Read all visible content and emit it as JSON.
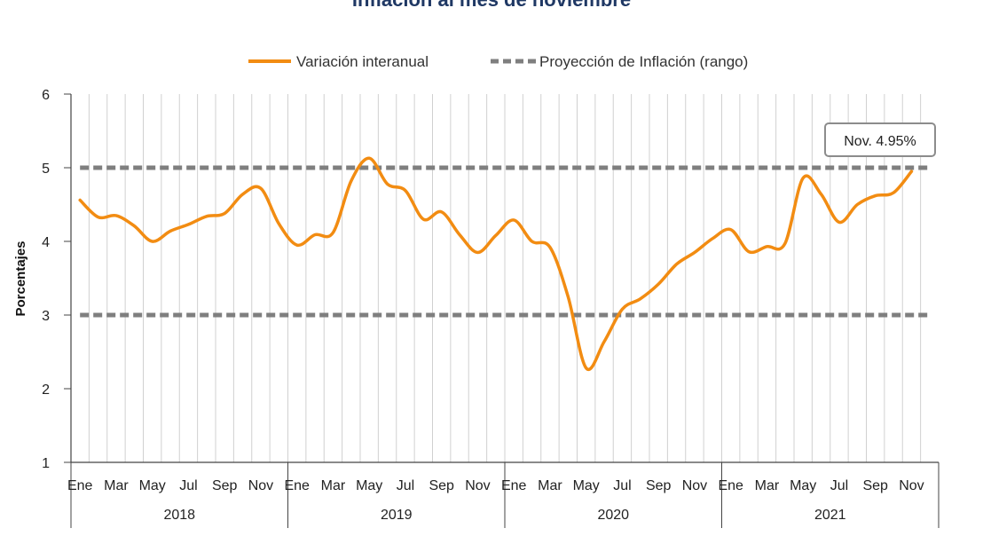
{
  "chart_data": {
    "type": "line",
    "title": "Inflación al mes de noviembre",
    "ylabel": "Porcentajes",
    "ylim": [
      1,
      6
    ],
    "yticks": [
      1,
      2,
      3,
      4,
      5,
      6
    ],
    "grid": "vertical",
    "legend_position": "top",
    "month_labels": [
      "Ene",
      "Mar",
      "May",
      "Jul",
      "Sep",
      "Nov"
    ],
    "years": [
      "2018",
      "2019",
      "2020",
      "2021"
    ],
    "series": [
      {
        "name": "Variación interanual",
        "color": "#f28c12",
        "style": "solid",
        "values": [
          4.56,
          4.33,
          4.35,
          4.21,
          4.0,
          4.14,
          4.23,
          4.34,
          4.38,
          4.64,
          4.72,
          4.24,
          3.95,
          4.09,
          4.12,
          4.82,
          5.13,
          4.78,
          4.69,
          4.3,
          4.4,
          4.09,
          3.85,
          4.08,
          4.29,
          4.0,
          3.92,
          3.25,
          2.28,
          2.64,
          3.08,
          3.22,
          3.42,
          3.69,
          3.85,
          4.04,
          4.16,
          3.86,
          3.93,
          3.97,
          4.86,
          4.64,
          4.26,
          4.5,
          4.62,
          4.66,
          4.95
        ]
      },
      {
        "name": "Proyección de Inflación (rango)",
        "color": "#7f7f7f",
        "style": "dashed",
        "bounds": [
          3,
          5
        ]
      }
    ],
    "annotation": {
      "text": "Nov. 4.95%"
    }
  }
}
